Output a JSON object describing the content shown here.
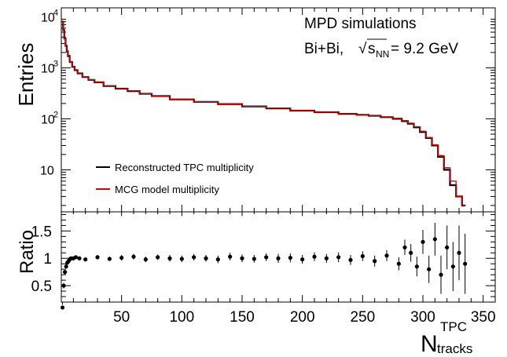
{
  "chart_data": [
    {
      "type": "line",
      "panel": "top",
      "ylabel": "Entries",
      "yscale": "log",
      "xlim": [
        0,
        360
      ],
      "ylim": [
        1.5,
        15000
      ],
      "y_tick_labels": [
        {
          "value": 10,
          "base": "10",
          "exp": ""
        },
        {
          "value": 100,
          "base": "10",
          "exp": "2"
        },
        {
          "value": 1000,
          "base": "10",
          "exp": "3"
        },
        {
          "value": 10000,
          "base": "10",
          "exp": "4"
        }
      ],
      "annotation": {
        "line1": "MPD simulations",
        "line2_prefix": "Bi+Bi,",
        "sqrt_symbol": "√",
        "s": "s",
        "nn": "NN",
        "energy": "= 9.2 GeV"
      },
      "legend_placement": "bottom-left",
      "series": [
        {
          "name": "Reconstructed TPC multiplicity",
          "color": "#000000",
          "x": [
            1,
            2,
            3,
            4,
            5,
            6,
            8,
            10,
            12,
            15,
            20,
            25,
            30,
            40,
            50,
            60,
            70,
            80,
            100,
            120,
            140,
            160,
            180,
            200,
            220,
            240,
            250,
            260,
            270,
            280,
            285,
            290,
            295,
            300,
            305,
            310,
            315,
            320,
            325,
            330,
            335
          ],
          "y": [
            8000,
            5500,
            3800,
            2700,
            2100,
            1700,
            1300,
            1050,
            900,
            780,
            660,
            580,
            520,
            440,
            390,
            350,
            310,
            280,
            240,
            215,
            195,
            175,
            160,
            145,
            135,
            125,
            120,
            115,
            108,
            100,
            90,
            80,
            68,
            55,
            42,
            30,
            18,
            10,
            5,
            3,
            2
          ]
        },
        {
          "name": "MCG model multiplicity",
          "color": "#d40000",
          "x": [
            1,
            2,
            3,
            4,
            5,
            6,
            8,
            10,
            12,
            15,
            20,
            25,
            30,
            40,
            50,
            60,
            70,
            80,
            100,
            120,
            140,
            160,
            180,
            200,
            220,
            240,
            250,
            260,
            270,
            280,
            285,
            290,
            295,
            300,
            305,
            310,
            315,
            320,
            325,
            330,
            335
          ],
          "y": [
            8200,
            5600,
            3900,
            2750,
            2150,
            1750,
            1320,
            1060,
            910,
            790,
            665,
            585,
            525,
            445,
            392,
            352,
            312,
            282,
            242,
            216,
            196,
            176,
            161,
            146,
            136,
            126,
            121,
            116,
            109,
            102,
            92,
            82,
            70,
            57,
            43,
            31,
            19,
            11,
            6,
            3,
            2
          ]
        }
      ]
    },
    {
      "type": "scatter",
      "panel": "bottom",
      "ylabel": "Ratio",
      "xlabel_base": "N",
      "xlabel_sup": "TPC",
      "xlabel_sub": "tracks",
      "xlim": [
        0,
        360
      ],
      "ylim": [
        0.2,
        1.85
      ],
      "x_tick_labels": [
        "50",
        "100",
        "150",
        "200",
        "250",
        "300",
        "350"
      ],
      "y_tick_labels": [
        "0.5",
        "1",
        "1.5"
      ],
      "series": [
        {
          "name": "",
          "color": "#000000",
          "x": [
            1,
            2,
            3,
            4,
            5,
            6,
            7,
            8,
            10,
            12,
            15,
            20,
            30,
            40,
            50,
            60,
            70,
            80,
            90,
            100,
            110,
            120,
            130,
            140,
            150,
            160,
            170,
            180,
            190,
            200,
            210,
            220,
            230,
            240,
            250,
            260,
            270,
            280,
            285,
            290,
            295,
            300,
            305,
            310,
            315,
            320,
            325,
            330,
            335
          ],
          "y": [
            0.1,
            0.5,
            0.75,
            0.85,
            0.92,
            0.95,
            0.98,
            1.0,
            1.0,
            1.02,
            1.0,
            0.98,
            1.02,
            0.99,
            1.01,
            1.03,
            0.98,
            1.02,
            1.0,
            0.99,
            1.02,
            1.0,
            0.98,
            1.03,
            1.0,
            0.99,
            1.02,
            1.0,
            1.01,
            0.98,
            1.03,
            1.0,
            1.02,
            0.97,
            1.04,
            0.95,
            1.05,
            0.9,
            1.2,
            1.1,
            0.85,
            1.3,
            0.8,
            1.35,
            0.7,
            1.2,
            0.85,
            1.1,
            0.9
          ],
          "yerr": [
            0.05,
            0.05,
            0.04,
            0.04,
            0.03,
            0.03,
            0.03,
            0.03,
            0.03,
            0.03,
            0.03,
            0.03,
            0.04,
            0.04,
            0.05,
            0.05,
            0.05,
            0.05,
            0.06,
            0.06,
            0.06,
            0.06,
            0.07,
            0.07,
            0.07,
            0.07,
            0.07,
            0.08,
            0.08,
            0.08,
            0.08,
            0.08,
            0.09,
            0.09,
            0.09,
            0.1,
            0.1,
            0.12,
            0.14,
            0.16,
            0.18,
            0.22,
            0.25,
            0.3,
            0.35,
            0.4,
            0.45,
            0.5,
            0.55
          ]
        }
      ]
    }
  ]
}
